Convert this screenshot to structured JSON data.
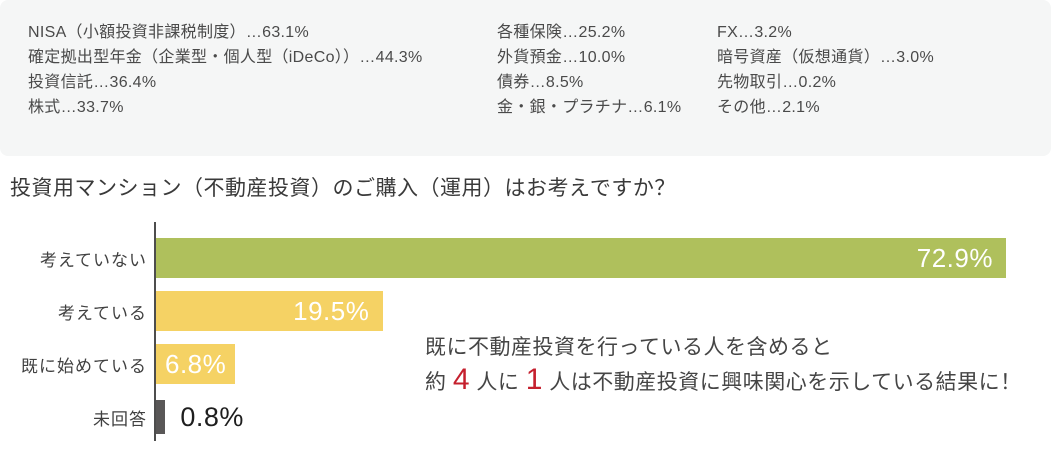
{
  "chart_data": [
    {
      "type": "table",
      "name": "investment-products-held",
      "columns": [
        [
          {
            "label": "NISA（小額投資非課税制度）",
            "value": 63.1,
            "display": "NISA（小額投資非課税制度）…63.1%"
          },
          {
            "label": "確定拠出型年金（企業型・個人型（iDeCo））",
            "value": 44.3,
            "display": "確定拠出型年金（企業型・個人型（iDeCo））…44.3%"
          },
          {
            "label": "投資信託",
            "value": 36.4,
            "display": "投資信託…36.4%"
          },
          {
            "label": "株式",
            "value": 33.7,
            "display": "株式…33.7%"
          }
        ],
        [
          {
            "label": "各種保険",
            "value": 25.2,
            "display": "各種保険…25.2%"
          },
          {
            "label": "外貨預金",
            "value": 10.0,
            "display": "外貨預金…10.0%"
          },
          {
            "label": "債券",
            "value": 8.5,
            "display": "債券…8.5%"
          },
          {
            "label": "金・銀・プラチナ",
            "value": 6.1,
            "display": "金・銀・プラチナ…6.1%"
          }
        ],
        [
          {
            "label": "FX",
            "value": 3.2,
            "display": "FX…3.2%"
          },
          {
            "label": "暗号資産（仮想通貨）",
            "value": 3.0,
            "display": "暗号資産（仮想通貨）…3.0%"
          },
          {
            "label": "先物取引",
            "value": 0.2,
            "display": "先物取引…0.2%"
          },
          {
            "label": "その他",
            "value": 2.1,
            "display": "その他…2.1%"
          }
        ]
      ]
    },
    {
      "type": "bar",
      "orientation": "horizontal",
      "title": "投資用マンション（不動産投資）のご購入（運用）はお考えですか？",
      "categories": [
        "考えていない",
        "考えている",
        "既に始めている",
        "未回答"
      ],
      "values": [
        72.9,
        19.5,
        6.8,
        0.8
      ],
      "value_labels": [
        "72.9%",
        "19.5%",
        "6.8%",
        "0.8%"
      ],
      "bar_colors": [
        "#afc05c",
        "#f5d264",
        "#f5d264",
        "#595757"
      ],
      "xlim": [
        0,
        75
      ],
      "grid": false,
      "legend": false,
      "annotation": {
        "line1": "既に不動産投資を行っている人を含めると",
        "line2_parts": [
          "約 ",
          "4",
          " 人に ",
          "1",
          " 人は不動産投資に興味関心を示している結果に！"
        ],
        "highlight_color": "#c5202e"
      }
    }
  ]
}
